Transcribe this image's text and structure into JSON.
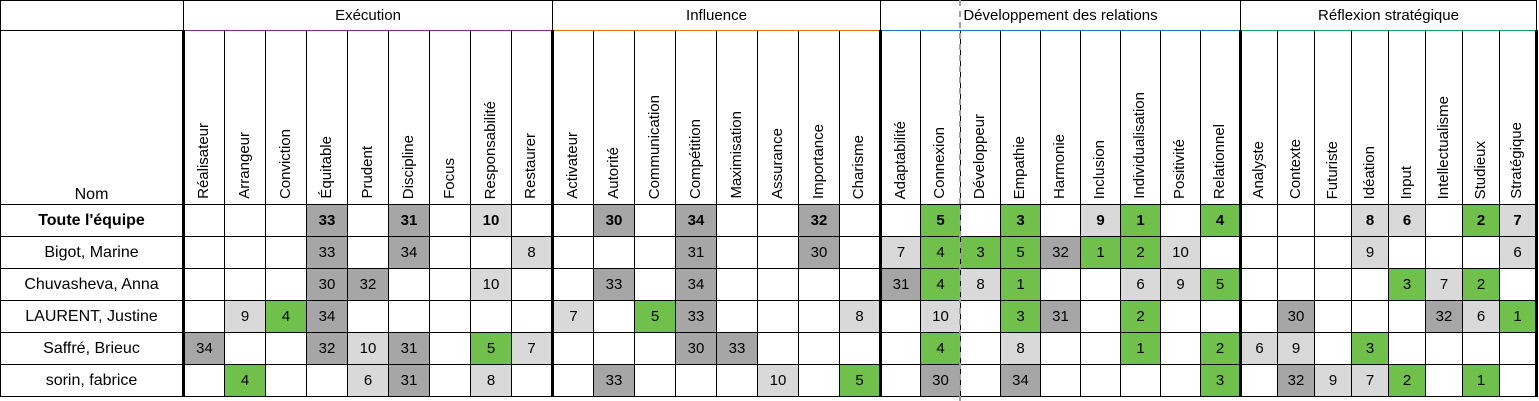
{
  "table": {
    "name_header": "Nom",
    "colors": {
      "cell_dark": "#a6a6a6",
      "cell_light": "#d9d9d9",
      "cell_green": "#70c04b",
      "cat_execution": "#7a2f9d",
      "cat_influence": "#e8730c",
      "cat_relations": "#177ac9",
      "cat_strategic": "#12a45c"
    },
    "categories": [
      {
        "label": "Exécution",
        "slug": "execution",
        "color_key": "cat_execution",
        "columns": [
          "Réalisateur",
          "Arrangeur",
          "Conviction",
          "Équitable",
          "Prudent",
          "Discipline",
          "Focus",
          "Responsabilité",
          "Restaurer"
        ]
      },
      {
        "label": "Influence",
        "slug": "influence",
        "color_key": "cat_influence",
        "columns": [
          "Activateur",
          "Autorité",
          "Communication",
          "Compétition",
          "Maximisation",
          "Assurance",
          "Importance",
          "Charisme"
        ]
      },
      {
        "label": "Développement des relations",
        "slug": "developpement-des-relations",
        "color_key": "cat_relations",
        "columns": [
          "Adaptabilité",
          "Connexion",
          "Développeur",
          "Empathie",
          "Harmonie",
          "Inclusion",
          "Individualisation",
          "Positivité",
          "Relationnel"
        ]
      },
      {
        "label": "Réflexion stratégique",
        "slug": "reflexion-strategique",
        "color_key": "cat_strategic",
        "columns": [
          "Analyste",
          "Contexte",
          "Futuriste",
          "Idéation",
          "Input",
          "Intellectualisme",
          "Studieux",
          "Stratégique"
        ]
      }
    ],
    "rows": [
      {
        "name": "Toute l'équipe",
        "bold": true,
        "cells": {
          "3": [
            33,
            "dark"
          ],
          "5": [
            31,
            "dark"
          ],
          "7": [
            10,
            "light"
          ],
          "10": [
            30,
            "dark"
          ],
          "12": [
            34,
            "dark"
          ],
          "15": [
            32,
            "dark"
          ],
          "18": [
            5,
            "green"
          ],
          "20": [
            3,
            "green"
          ],
          "22": [
            9,
            "light"
          ],
          "23": [
            1,
            "green"
          ],
          "25": [
            4,
            "green"
          ],
          "29": [
            8,
            "light"
          ],
          "30": [
            6,
            "light"
          ],
          "32": [
            2,
            "green"
          ],
          "33": [
            7,
            "light"
          ]
        }
      },
      {
        "name": "Bigot, Marine",
        "bold": false,
        "cells": {
          "3": [
            33,
            "dark"
          ],
          "5": [
            34,
            "dark"
          ],
          "8": [
            8,
            "light"
          ],
          "12": [
            31,
            "dark"
          ],
          "15": [
            30,
            "dark"
          ],
          "17": [
            7,
            "light"
          ],
          "18": [
            4,
            "green"
          ],
          "19": [
            3,
            "green"
          ],
          "20": [
            5,
            "green"
          ],
          "21": [
            32,
            "dark"
          ],
          "22": [
            1,
            "green"
          ],
          "23": [
            2,
            "green"
          ],
          "24": [
            10,
            "light"
          ],
          "29": [
            9,
            "light"
          ],
          "33": [
            6,
            "light"
          ]
        }
      },
      {
        "name": "Chuvasheva, Anna",
        "bold": false,
        "cells": {
          "3": [
            30,
            "dark"
          ],
          "4": [
            32,
            "dark"
          ],
          "7": [
            10,
            "light"
          ],
          "10": [
            33,
            "dark"
          ],
          "12": [
            34,
            "dark"
          ],
          "17": [
            31,
            "dark"
          ],
          "18": [
            4,
            "green"
          ],
          "19": [
            8,
            "light"
          ],
          "20": [
            1,
            "green"
          ],
          "23": [
            6,
            "light"
          ],
          "24": [
            9,
            "light"
          ],
          "25": [
            5,
            "green"
          ],
          "30": [
            3,
            "green"
          ],
          "31": [
            7,
            "light"
          ],
          "32": [
            2,
            "green"
          ]
        }
      },
      {
        "name": "LAURENT, Justine",
        "bold": false,
        "cells": {
          "1": [
            9,
            "light"
          ],
          "2": [
            4,
            "green"
          ],
          "3": [
            34,
            "dark"
          ],
          "9": [
            7,
            "light"
          ],
          "11": [
            5,
            "green"
          ],
          "12": [
            33,
            "dark"
          ],
          "16": [
            8,
            "light"
          ],
          "18": [
            10,
            "light"
          ],
          "20": [
            3,
            "green"
          ],
          "21": [
            31,
            "dark"
          ],
          "23": [
            2,
            "green"
          ],
          "27": [
            30,
            "dark"
          ],
          "31": [
            32,
            "dark"
          ],
          "32": [
            6,
            "light"
          ],
          "33": [
            1,
            "green"
          ]
        }
      },
      {
        "name": "Saffré, Brieuc",
        "bold": false,
        "cells": {
          "0": [
            34,
            "dark"
          ],
          "3": [
            32,
            "dark"
          ],
          "4": [
            10,
            "light"
          ],
          "5": [
            31,
            "dark"
          ],
          "7": [
            5,
            "green"
          ],
          "8": [
            7,
            "light"
          ],
          "12": [
            30,
            "dark"
          ],
          "13": [
            33,
            "dark"
          ],
          "18": [
            4,
            "green"
          ],
          "20": [
            8,
            "light"
          ],
          "23": [
            1,
            "green"
          ],
          "25": [
            2,
            "green"
          ],
          "26": [
            6,
            "light"
          ],
          "27": [
            9,
            "light"
          ],
          "29": [
            3,
            "green"
          ]
        }
      },
      {
        "name": "sorin, fabrice",
        "bold": false,
        "cells": {
          "1": [
            4,
            "green"
          ],
          "4": [
            6,
            "light"
          ],
          "5": [
            31,
            "dark"
          ],
          "7": [
            8,
            "light"
          ],
          "10": [
            33,
            "dark"
          ],
          "14": [
            10,
            "light"
          ],
          "16": [
            5,
            "green"
          ],
          "18": [
            30,
            "dark"
          ],
          "20": [
            34,
            "dark"
          ],
          "25": [
            3,
            "green"
          ],
          "27": [
            32,
            "dark"
          ],
          "28": [
            9,
            "light"
          ],
          "29": [
            7,
            "light"
          ],
          "30": [
            2,
            "green"
          ],
          "32": [
            1,
            "green"
          ]
        }
      }
    ]
  }
}
